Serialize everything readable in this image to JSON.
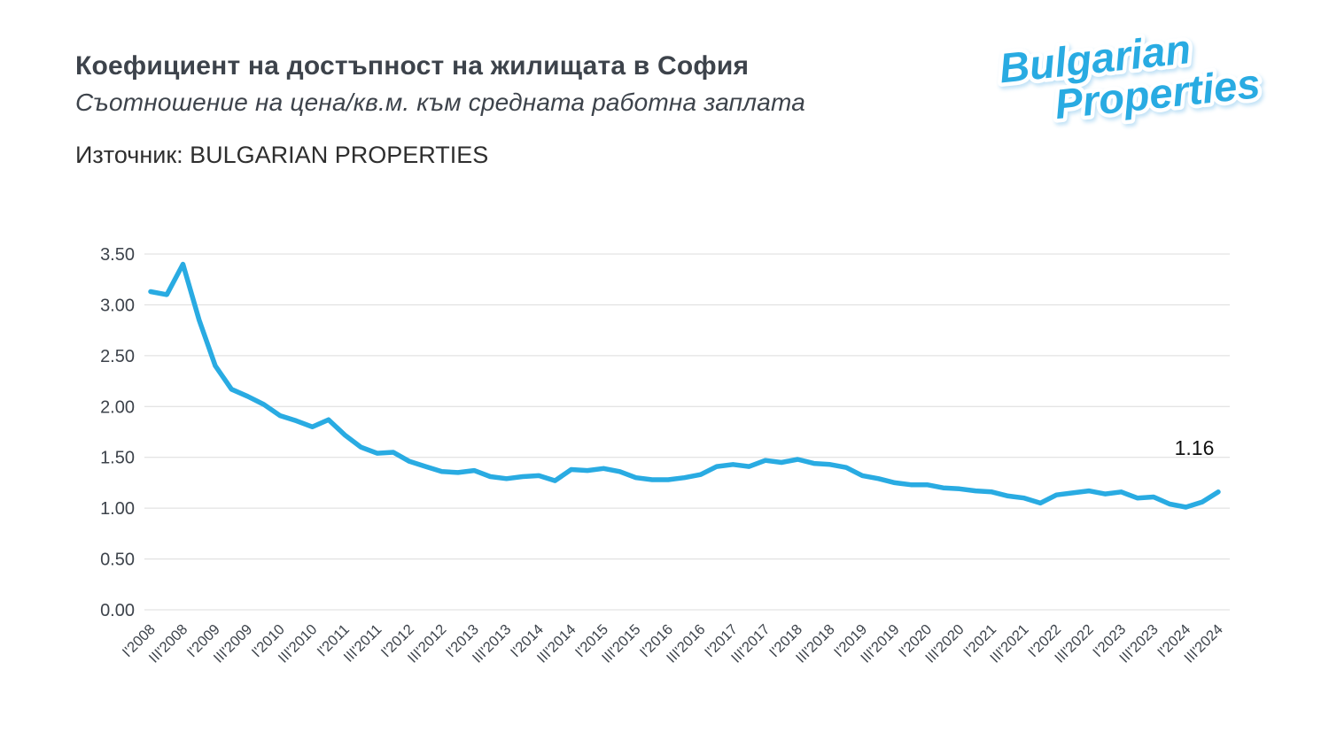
{
  "header": {
    "title": "Коефициент на достъпност на жилищата в София",
    "subtitle": "Съотношение на цена/кв.м. към средната работна заплата",
    "source": "Източник: BULGARIAN PROPERTIES",
    "logo_line1": "Bulgarian",
    "logo_line2": "Properties"
  },
  "colors": {
    "line": "#29abe2",
    "grid": "#dcdcdc",
    "axis_text": "#3d434b",
    "annotation": "#111111",
    "logo_fill": "#29abe2",
    "logo_stroke": "#ffffff"
  },
  "chart_data": {
    "type": "line",
    "title": "Коефициент на достъпност на жилищата в София",
    "subtitle": "Съотношение на цена/кв.м. към средната работна заплата",
    "xlabel": "",
    "ylabel": "",
    "ylim": [
      0,
      3.5
    ],
    "yticks": [
      0,
      0.5,
      1,
      1.5,
      2,
      2.5,
      3,
      3.5
    ],
    "grid": true,
    "legend": false,
    "x_tick_labels": [
      "I'2008",
      "III'2008",
      "I'2009",
      "III'2009",
      "I'2010",
      "III'2010",
      "I'2011",
      "III'2011",
      "I'2012",
      "III'2012",
      "I'2013",
      "III'2013",
      "I'2014",
      "III'2014",
      "I'2015",
      "III'2015",
      "I'2016",
      "III'2016",
      "I'2017",
      "III'2017",
      "I'2018",
      "III'2018",
      "I'2019",
      "III'2019",
      "I'2020",
      "III'2020",
      "I'2021",
      "III'2021",
      "I'2022",
      "III'2022",
      "I'2023",
      "III'2023",
      "I'2024",
      "III'2024"
    ],
    "points_per_tick": 2,
    "values": [
      3.13,
      3.1,
      3.4,
      2.85,
      2.4,
      2.17,
      2.1,
      2.02,
      1.91,
      1.86,
      1.8,
      1.87,
      1.72,
      1.6,
      1.54,
      1.55,
      1.46,
      1.41,
      1.36,
      1.35,
      1.37,
      1.31,
      1.29,
      1.31,
      1.32,
      1.27,
      1.38,
      1.37,
      1.39,
      1.36,
      1.3,
      1.28,
      1.28,
      1.3,
      1.33,
      1.41,
      1.43,
      1.41,
      1.47,
      1.45,
      1.48,
      1.44,
      1.43,
      1.4,
      1.32,
      1.29,
      1.25,
      1.23,
      1.23,
      1.2,
      1.19,
      1.17,
      1.16,
      1.12,
      1.1,
      1.05,
      1.13,
      1.15,
      1.17,
      1.14,
      1.16,
      1.1,
      1.11,
      1.04,
      1.01,
      1.06,
      1.16
    ],
    "last_point_label": "1.16"
  }
}
